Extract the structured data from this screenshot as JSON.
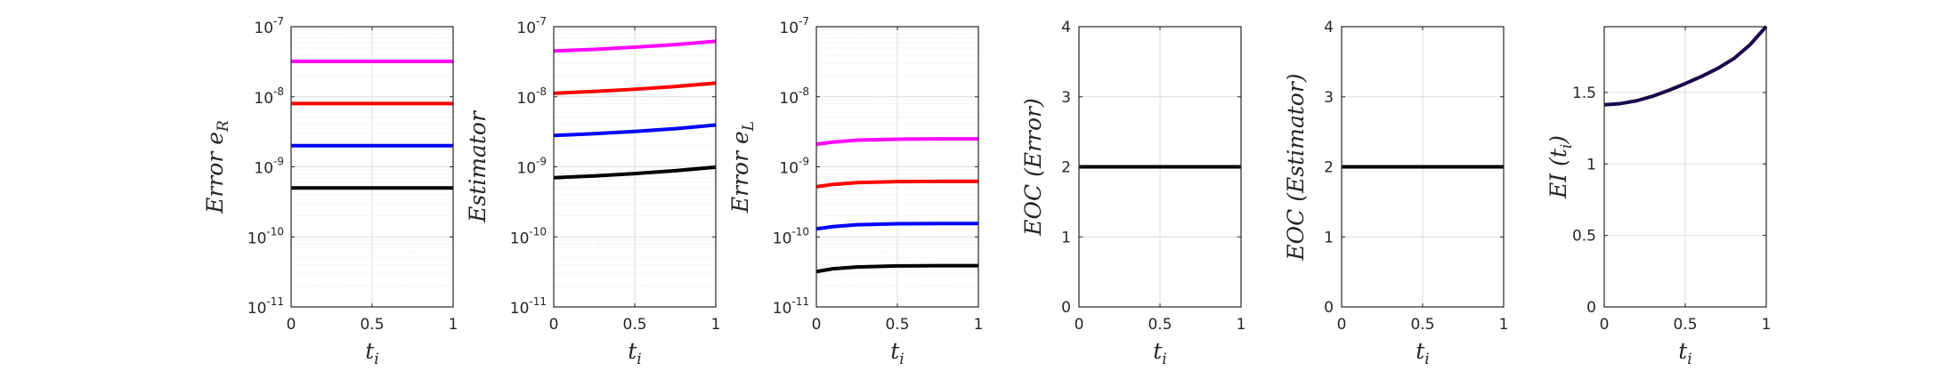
{
  "chart_data": [
    {
      "type": "line",
      "yscale": "log",
      "xlim": [
        0,
        1
      ],
      "ylim": [
        1e-11,
        1e-07
      ],
      "x_ticks": [
        "0",
        "0.5",
        "1"
      ],
      "y_ticks": [
        {
          "base": "10",
          "exp": "-7"
        },
        {
          "base": "10",
          "exp": "-8"
        },
        {
          "base": "10",
          "exp": "-9"
        },
        {
          "base": "10",
          "exp": "-10"
        },
        {
          "base": "10",
          "exp": "-11"
        }
      ],
      "xlabel": {
        "main": "t",
        "sub": "i"
      },
      "ylabel": {
        "main": "Error e",
        "sub": "R"
      },
      "grid": true,
      "series": [
        {
          "color": "#ff00ff",
          "x": [
            0,
            1
          ],
          "y": [
            3.2e-08,
            3.2e-08
          ]
        },
        {
          "color": "#ff0000",
          "x": [
            0,
            1
          ],
          "y": [
            8e-09,
            8e-09
          ]
        },
        {
          "color": "#0000ff",
          "x": [
            0,
            1
          ],
          "y": [
            2e-09,
            2e-09
          ]
        },
        {
          "color": "#000000",
          "x": [
            0,
            1
          ],
          "y": [
            5e-10,
            5e-10
          ]
        }
      ]
    },
    {
      "type": "line",
      "yscale": "log",
      "xlim": [
        0,
        1
      ],
      "ylim": [
        1e-11,
        1e-07
      ],
      "x_ticks": [
        "0",
        "0.5",
        "1"
      ],
      "y_ticks": [
        {
          "base": "10",
          "exp": "-7"
        },
        {
          "base": "10",
          "exp": "-8"
        },
        {
          "base": "10",
          "exp": "-9"
        },
        {
          "base": "10",
          "exp": "-10"
        },
        {
          "base": "10",
          "exp": "-11"
        }
      ],
      "xlabel": {
        "main": "t",
        "sub": "i"
      },
      "ylabel": {
        "main": "Estimator",
        "sub": ""
      },
      "grid": true,
      "series": [
        {
          "color": "#ff00ff",
          "x": [
            0,
            0.25,
            0.5,
            0.75,
            1
          ],
          "y": [
            4.5e-08,
            4.75e-08,
            5.1e-08,
            5.55e-08,
            6.2e-08
          ]
        },
        {
          "color": "#ff0000",
          "x": [
            0,
            0.25,
            0.5,
            0.75,
            1
          ],
          "y": [
            1.12e-08,
            1.19e-08,
            1.28e-08,
            1.4e-08,
            1.57e-08
          ]
        },
        {
          "color": "#0000ff",
          "x": [
            0,
            0.25,
            0.5,
            0.75,
            1
          ],
          "y": [
            2.8e-09,
            2.97e-09,
            3.2e-09,
            3.5e-09,
            3.95e-09
          ]
        },
        {
          "color": "#000000",
          "x": [
            0,
            0.25,
            0.5,
            0.75,
            1
          ],
          "y": [
            7e-10,
            7.4e-10,
            8e-10,
            8.8e-10,
            9.9e-10
          ]
        }
      ]
    },
    {
      "type": "line",
      "yscale": "log",
      "xlim": [
        0,
        1
      ],
      "ylim": [
        1e-11,
        1e-07
      ],
      "x_ticks": [
        "0",
        "0.5",
        "1"
      ],
      "y_ticks": [
        {
          "base": "10",
          "exp": "-7"
        },
        {
          "base": "10",
          "exp": "-8"
        },
        {
          "base": "10",
          "exp": "-9"
        },
        {
          "base": "10",
          "exp": "-10"
        },
        {
          "base": "10",
          "exp": "-11"
        }
      ],
      "xlabel": {
        "main": "t",
        "sub": "i"
      },
      "ylabel": {
        "main": "Error e",
        "sub": "L"
      },
      "grid": true,
      "series": [
        {
          "color": "#ff00ff",
          "x": [
            0,
            0.1,
            0.25,
            0.5,
            0.75,
            1
          ],
          "y": [
            2.1e-09,
            2.25e-09,
            2.4e-09,
            2.48e-09,
            2.5e-09,
            2.5e-09
          ]
        },
        {
          "color": "#ff0000",
          "x": [
            0,
            0.1,
            0.25,
            0.5,
            0.75,
            1
          ],
          "y": [
            5.2e-10,
            5.6e-10,
            5.95e-10,
            6.15e-10,
            6.2e-10,
            6.2e-10
          ]
        },
        {
          "color": "#0000ff",
          "x": [
            0,
            0.1,
            0.25,
            0.5,
            0.75,
            1
          ],
          "y": [
            1.3e-10,
            1.4e-10,
            1.49e-10,
            1.54e-10,
            1.55e-10,
            1.55e-10
          ]
        },
        {
          "color": "#000000",
          "x": [
            0,
            0.1,
            0.25,
            0.5,
            0.75,
            1
          ],
          "y": [
            3.2e-11,
            3.5e-11,
            3.72e-11,
            3.85e-11,
            3.88e-11,
            3.88e-11
          ]
        }
      ]
    },
    {
      "type": "line",
      "yscale": "linear",
      "xlim": [
        0,
        1
      ],
      "ylim": [
        0,
        4
      ],
      "x_ticks": [
        "0",
        "0.5",
        "1"
      ],
      "y_ticks": [
        "0",
        "1",
        "2",
        "3",
        "4"
      ],
      "xlabel": {
        "main": "t",
        "sub": "i"
      },
      "ylabel": {
        "main": "EOC (Error)",
        "sub": ""
      },
      "grid": true,
      "series": [
        {
          "color": "#000000",
          "x": [
            0,
            1
          ],
          "y": [
            2,
            2
          ]
        }
      ]
    },
    {
      "type": "line",
      "yscale": "linear",
      "xlim": [
        0,
        1
      ],
      "ylim": [
        0,
        4
      ],
      "x_ticks": [
        "0",
        "0.5",
        "1"
      ],
      "y_ticks": [
        "0",
        "1",
        "2",
        "3",
        "4"
      ],
      "xlabel": {
        "main": "t",
        "sub": "i"
      },
      "ylabel": {
        "main": "EOC (Estimator)",
        "sub": ""
      },
      "grid": true,
      "series": [
        {
          "color": "#000000",
          "x": [
            0,
            1
          ],
          "y": [
            2,
            2
          ]
        }
      ]
    },
    {
      "type": "line",
      "yscale": "linear",
      "xlim": [
        0,
        1
      ],
      "ylim": [
        0,
        1.96
      ],
      "x_ticks": [
        "0",
        "0.5",
        "1"
      ],
      "y_ticks": [
        "0",
        "0.5",
        "1",
        "1.5"
      ],
      "xlabel": {
        "main": "t",
        "sub": "i"
      },
      "ylabel": {
        "main": "EI (t",
        "sub": "i",
        "suffix": ")"
      },
      "grid": true,
      "series": [
        {
          "color": "#1a0a4a",
          "x": [
            0,
            0.1,
            0.2,
            0.3,
            0.4,
            0.5,
            0.6,
            0.7,
            0.8,
            0.9,
            1
          ],
          "y": [
            1.414,
            1.422,
            1.442,
            1.474,
            1.516,
            1.562,
            1.612,
            1.668,
            1.737,
            1.834,
            1.962
          ]
        }
      ]
    }
  ]
}
